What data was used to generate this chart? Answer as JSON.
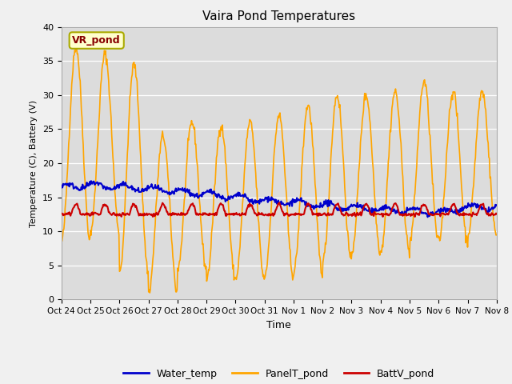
{
  "title": "Vaira Pond Temperatures",
  "xlabel": "Time",
  "ylabel": "Temperature (C), Battery (V)",
  "ylim": [
    0,
    40
  ],
  "yticks": [
    0,
    5,
    10,
    15,
    20,
    25,
    30,
    35,
    40
  ],
  "xtick_labels": [
    "Oct 24",
    "Oct 25",
    "Oct 26",
    "Oct 27",
    "Oct 28",
    "Oct 29",
    "Oct 30",
    "Oct 31",
    "Nov 1",
    "Nov 2",
    "Nov 3",
    "Nov 4",
    "Nov 5",
    "Nov 6",
    "Nov 7",
    "Nov 8"
  ],
  "water_temp_color": "#0000cc",
  "panel_temp_color": "#ffa500",
  "batt_color": "#cc0000",
  "fig_bg_color": "#f0f0f0",
  "plot_bg_color": "#dcdcdc",
  "annotation_text": "VR_pond",
  "annotation_color": "#880000",
  "annotation_bg": "#ffffcc",
  "annotation_edge": "#aaaa00",
  "legend_labels": [
    "Water_temp",
    "PanelT_pond",
    "BattV_pond"
  ],
  "n_days": 15,
  "n_per_day": 48,
  "peaks": [
    37,
    36,
    34.5,
    24,
    26,
    25.5,
    26,
    27,
    28.5,
    30,
    30,
    30.5,
    32,
    30.5,
    30.5
  ],
  "troughs": [
    8.5,
    10,
    4,
    1,
    4.5,
    3,
    3,
    3.5,
    4,
    5.5,
    7,
    7,
    8.5,
    8.5,
    9.5
  ],
  "water_vals": [
    16.5,
    16.8,
    16.5,
    16.2,
    15.8,
    15.5,
    15.0,
    14.5,
    14.2,
    13.8,
    13.5,
    13.2,
    13.0,
    12.8,
    13.5
  ]
}
